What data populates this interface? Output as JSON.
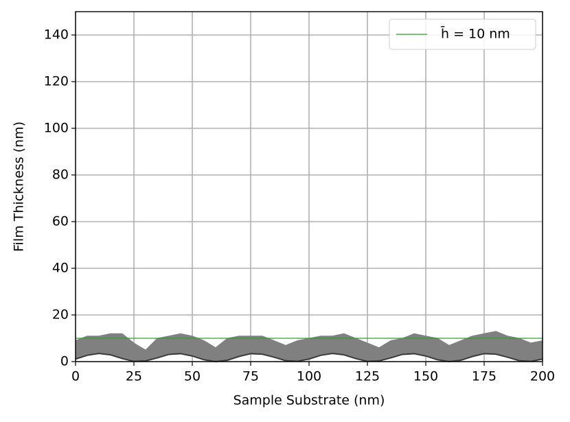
{
  "chart_data": {
    "type": "line",
    "x_label": "Sample Substrate (nm)",
    "y_label": "Film Thickness (nm)",
    "x": [
      0,
      5,
      10,
      15,
      20,
      25,
      30,
      35,
      40,
      45,
      50,
      55,
      60,
      65,
      70,
      75,
      80,
      85,
      90,
      95,
      100,
      105,
      110,
      115,
      120,
      125,
      130,
      135,
      140,
      145,
      150,
      155,
      160,
      165,
      170,
      175,
      180,
      185,
      190,
      195,
      200
    ],
    "series": [
      {
        "name": "h̄ = 10 nm",
        "color": "#2ca02c",
        "style": "line",
        "values": [
          10,
          10,
          10,
          10,
          10,
          10,
          10,
          10,
          10,
          10,
          10,
          10,
          10,
          10,
          10,
          10,
          10,
          10,
          10,
          10,
          10,
          10,
          10,
          10,
          10,
          10,
          10,
          10,
          10,
          10,
          10,
          10,
          10,
          10,
          10,
          10,
          10,
          10,
          10,
          10,
          10
        ]
      },
      {
        "color": "#808080",
        "style": "area",
        "values": [
          9,
          11,
          11,
          12,
          12,
          8,
          5,
          10,
          11,
          12,
          11,
          9,
          6,
          10,
          11,
          11,
          11,
          9,
          7,
          9,
          10,
          11,
          11,
          12,
          10,
          8,
          6,
          9,
          10,
          12,
          11,
          10,
          7,
          9,
          11,
          12,
          13,
          11,
          10,
          8,
          9
        ]
      },
      {
        "color": "#3a3a3a",
        "style": "line",
        "values": [
          1.1,
          2.7,
          3.5,
          2.9,
          1.3,
          0.1,
          0.3,
          1.6,
          3.1,
          3.4,
          2.4,
          0.8,
          0.0,
          0.6,
          2.2,
          3.4,
          3.2,
          1.9,
          0.4,
          0.1,
          1.1,
          2.7,
          3.5,
          2.9,
          1.3,
          0.1,
          0.3,
          1.6,
          3.1,
          3.4,
          2.4,
          0.8,
          0.0,
          0.6,
          2.2,
          3.4,
          3.2,
          1.9,
          0.4,
          0.1,
          1.1
        ]
      }
    ],
    "xlim": [
      0,
      200
    ],
    "xticks": [
      0,
      25,
      50,
      75,
      100,
      125,
      150,
      175,
      200
    ],
    "ylim": [
      0,
      150
    ],
    "yticks": [
      0,
      20,
      40,
      60,
      80,
      100,
      120,
      140
    ],
    "grid": true,
    "legend": "upper right"
  }
}
